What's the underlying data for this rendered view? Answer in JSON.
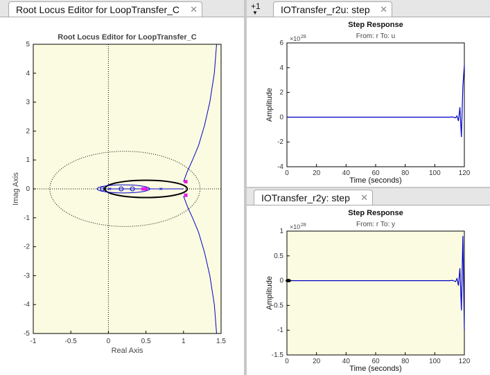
{
  "tabs": {
    "left": {
      "label": "Root Locus Editor for LoopTransfer_C"
    },
    "top_right_overflow": "+1",
    "top_right": {
      "label": "IOTransfer_r2u: step"
    },
    "bottom_right": {
      "label": "IOTransfer_r2y: step"
    },
    "close_glyph": "✕"
  },
  "icons": {
    "close": "close-icon",
    "overflow": "chevron-down-icon"
  },
  "colors": {
    "plot_bg": "#fbfbe1",
    "locus": "#0000c8",
    "marker": "#e020e0",
    "frame": "#000000"
  },
  "chart_data": [
    {
      "type": "line",
      "title": "Root Locus Editor for LoopTransfer_C",
      "xlabel": "Real Axis",
      "ylabel": "Imag Axis",
      "xlim": [
        -1,
        1.5
      ],
      "ylim": [
        -5,
        5
      ],
      "xticks": [
        "-1",
        "-0.5",
        "0",
        "0.5",
        "1",
        "1.5"
      ],
      "yticks": [
        "-5",
        "-4",
        "-3",
        "-2",
        "-1",
        "0",
        "1",
        "2",
        "3",
        "4",
        "5"
      ],
      "series": [
        {
          "values": [
            [
              1.0,
              0.25
            ],
            [
              1.05,
              0.6
            ],
            [
              1.12,
              1.0
            ],
            [
              1.2,
              1.5
            ],
            [
              1.28,
              2.2
            ],
            [
              1.35,
              3.0
            ],
            [
              1.41,
              4.0
            ],
            [
              1.44,
              5.0
            ]
          ]
        },
        {
          "values": [
            [
              1.0,
              -0.25
            ],
            [
              1.05,
              -0.6
            ],
            [
              1.12,
              -1.0
            ],
            [
              1.2,
              -1.5
            ],
            [
              1.28,
              -2.2
            ],
            [
              1.35,
              -3.0
            ],
            [
              1.41,
              -4.0
            ],
            [
              1.44,
              -5.0
            ]
          ]
        }
      ],
      "closed_loop_poles": [
        [
          1.03,
          0.25
        ],
        [
          1.03,
          -0.22
        ],
        [
          0.46,
          0.0
        ],
        [
          0.5,
          0.0
        ]
      ]
    },
    {
      "type": "line",
      "title": "Step Response",
      "subtitle": "From: r  To: u",
      "xlabel": "Time (seconds)",
      "ylabel": "Amplitude",
      "exponent": "28",
      "xlim": [
        0,
        120
      ],
      "ylim": [
        -4,
        6
      ],
      "xticks": [
        "0",
        "20",
        "40",
        "60",
        "80",
        "100",
        "120"
      ],
      "yticks": [
        "-4",
        "-2",
        "0",
        "2",
        "4",
        "6"
      ],
      "x": [
        0,
        110,
        112,
        114,
        115,
        116,
        117,
        118,
        119,
        120
      ],
      "values": [
        0,
        0,
        0.02,
        -0.05,
        0.1,
        -0.3,
        0.8,
        -1.6,
        2.5,
        4.2
      ]
    },
    {
      "type": "line",
      "title": "Step Response",
      "subtitle": "From: r  To: y",
      "xlabel": "Time (seconds)",
      "ylabel": "Amplitude",
      "exponent": "28",
      "xlim": [
        0,
        120
      ],
      "ylim": [
        -1.5,
        1
      ],
      "xticks": [
        "0",
        "20",
        "40",
        "60",
        "80",
        "100",
        "120"
      ],
      "yticks": [
        "-1.5",
        "-1",
        "-0.5",
        "0",
        "0.5",
        "1"
      ],
      "x": [
        0,
        110,
        112,
        114,
        115,
        116,
        117,
        118,
        119,
        120
      ],
      "values": [
        0,
        0,
        0.005,
        -0.02,
        0.04,
        -0.1,
        0.25,
        -0.6,
        0.9,
        -1.0
      ]
    }
  ]
}
